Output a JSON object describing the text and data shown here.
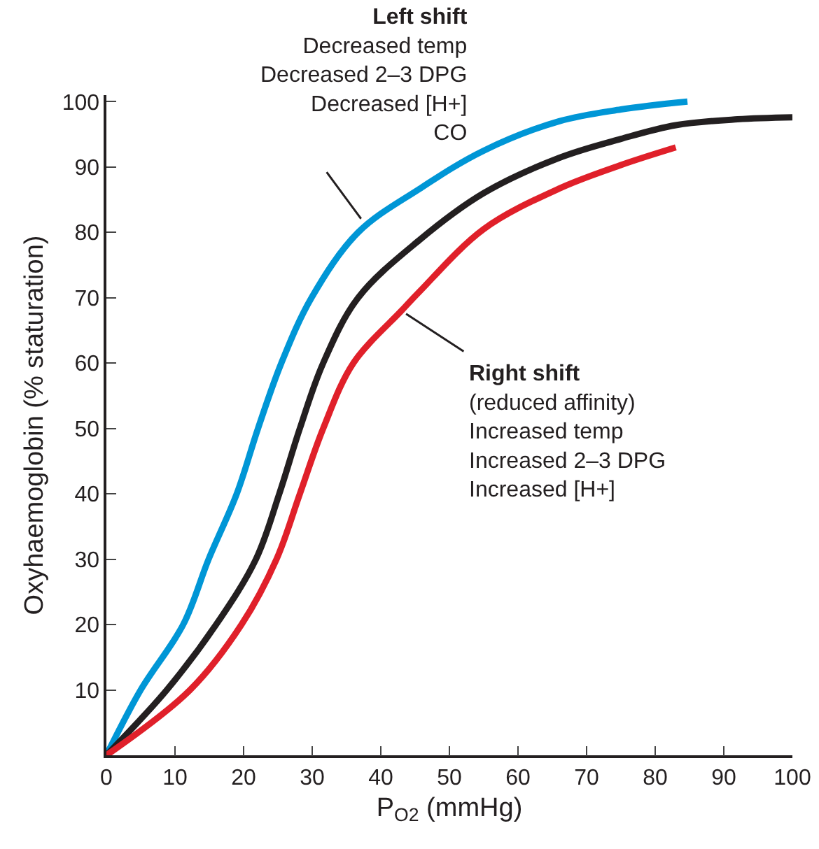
{
  "chart_data": {
    "type": "line",
    "xlabel": "P$_{O2}$ (mmHg)",
    "ylabel": "Oxyhaemoglobin (% staturation)",
    "series": [
      {
        "color": "#0096d6",
        "x": [
          0,
          5,
          11.2,
          14.9,
          19,
          22.1,
          25.5,
          29.9,
          36.7,
          45.7,
          55,
          66,
          75,
          84.7
        ],
        "values": [
          0,
          10,
          20,
          30,
          40,
          50,
          60,
          70,
          80,
          86.7,
          92.5,
          97,
          98.8,
          100
        ]
      },
      {
        "color": "#231f20",
        "x": [
          0,
          8.8,
          16,
          21.8,
          25.2,
          28.2,
          31.6,
          36.7,
          45.6,
          55,
          66,
          75,
          83,
          92,
          100
        ],
        "values": [
          0,
          10,
          20,
          30,
          40,
          50,
          60,
          70,
          78.8,
          86,
          91.4,
          94.3,
          96.4,
          97.3,
          97.6
        ]
      },
      {
        "color": "#e0202a",
        "x": [
          0,
          12.2,
          19.7,
          24.8,
          28.2,
          31.6,
          36,
          43,
          45.7,
          55,
          66,
          75,
          83
        ],
        "values": [
          0,
          10,
          20,
          30,
          40,
          50,
          60,
          68,
          71,
          80.5,
          86.7,
          90.3,
          93
        ]
      }
    ],
    "annotations": [
      {
        "text": "Left shift\nDecreased temp\nDecreased 2–3 DPG\nDecreased [H+]\nCO",
        "x": 37.6,
        "y": 81.4
      },
      {
        "text": "Right shift\n(reduced affinity)\nIncreased temp\nIncreased 2–3 DPG\nIncreased [H+]",
        "x": 43,
        "y": 68
      }
    ],
    "xlim": [
      0,
      100
    ],
    "xticks": [
      0,
      10,
      20,
      30,
      40,
      50,
      60,
      70,
      80,
      90,
      100
    ],
    "ylim": [
      0,
      101
    ],
    "yticks": [
      10,
      20,
      30,
      40,
      50,
      60,
      70,
      80,
      90,
      100
    ],
    "marker": "none",
    "line_style": "solid"
  }
}
